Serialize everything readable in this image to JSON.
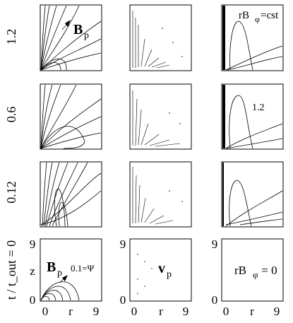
{
  "row_labels": [
    "1.2",
    "0.6",
    "0.12",
    "t / t_out = 0"
  ],
  "axis": {
    "x_label": "r",
    "z_label": "z",
    "x_ticks": [
      "0",
      "9"
    ],
    "z_ticks": [
      "0",
      "9"
    ]
  },
  "annotations": {
    "bp_label": "B",
    "bp_sub": "p",
    "vp_label": "v",
    "vp_sub": "p",
    "rb_prefix": "rB",
    "rb_sub": "φ",
    "rb_const_suffix": "=cst",
    "rb_zero_suffix": " = 0",
    "contour_level": "1.2",
    "psi_label": "0.1=Ψ"
  },
  "colors": {
    "ink": "#000000",
    "background": "#ffffff"
  }
}
